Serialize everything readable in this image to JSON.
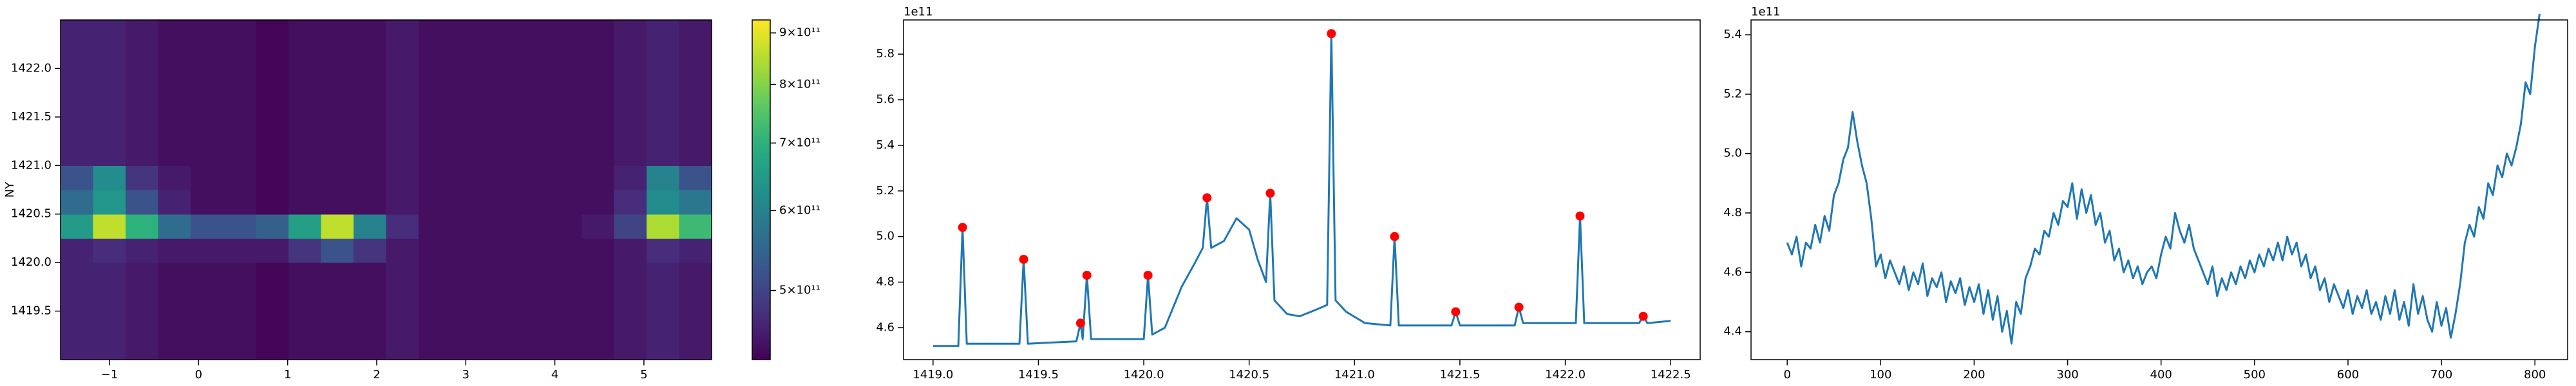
{
  "chart_data": [
    {
      "type": "heatmap",
      "y_label": "NY",
      "xlim": [
        -1.55,
        5.76
      ],
      "ylim": [
        1419.0,
        1422.5
      ],
      "xticks": [
        {
          "value": -1,
          "label": "−1"
        },
        0,
        1,
        2,
        3,
        4,
        5
      ],
      "yticks": [
        1419.5,
        {
          "value": 1420,
          "label": "1420.0"
        },
        1420.5,
        {
          "value": 1421,
          "label": "1421.0"
        },
        1421.5,
        {
          "value": 1422,
          "label": "1422.0"
        }
      ],
      "colormap": "viridis",
      "color_scale": "log",
      "clim": [
        427000000000.0,
        927000000000.0
      ],
      "cticks": [
        {
          "value": 500000000000.0,
          "label": "5×10¹¹"
        },
        {
          "value": 600000000000.0,
          "label": "6×10¹¹"
        },
        {
          "value": 700000000000.0,
          "label": "7×10¹¹"
        },
        {
          "value": 800000000000.0,
          "label": "8×10¹¹"
        },
        {
          "value": 900000000000.0,
          "label": "9×10¹¹"
        }
      ],
      "z": [
        [
          460000000000.0,
          460000000000.0,
          450000000000.0,
          440000000000.0,
          440000000000.0,
          440000000000.0,
          430000000000.0,
          440000000000.0,
          440000000000.0,
          440000000000.0,
          450000000000.0,
          440000000000.0,
          440000000000.0,
          440000000000.0,
          440000000000.0,
          440000000000.0,
          440000000000.0,
          450000000000.0,
          460000000000.0,
          450000000000.0
        ],
        [
          460000000000.0,
          460000000000.0,
          450000000000.0,
          440000000000.0,
          440000000000.0,
          440000000000.0,
          430000000000.0,
          440000000000.0,
          440000000000.0,
          440000000000.0,
          450000000000.0,
          440000000000.0,
          440000000000.0,
          440000000000.0,
          440000000000.0,
          440000000000.0,
          440000000000.0,
          450000000000.0,
          460000000000.0,
          450000000000.0
        ],
        [
          460000000000.0,
          460000000000.0,
          450000000000.0,
          440000000000.0,
          440000000000.0,
          440000000000.0,
          430000000000.0,
          440000000000.0,
          440000000000.0,
          440000000000.0,
          450000000000.0,
          440000000000.0,
          440000000000.0,
          440000000000.0,
          440000000000.0,
          440000000000.0,
          440000000000.0,
          450000000000.0,
          460000000000.0,
          450000000000.0
        ],
        [
          460000000000.0,
          460000000000.0,
          450000000000.0,
          440000000000.0,
          440000000000.0,
          440000000000.0,
          430000000000.0,
          440000000000.0,
          440000000000.0,
          440000000000.0,
          450000000000.0,
          440000000000.0,
          440000000000.0,
          440000000000.0,
          440000000000.0,
          440000000000.0,
          440000000000.0,
          450000000000.0,
          460000000000.0,
          450000000000.0
        ],
        [
          460000000000.0,
          470000000000.0,
          460000000000.0,
          450000000000.0,
          450000000000.0,
          450000000000.0,
          450000000000.0,
          480000000000.0,
          520000000000.0,
          480000000000.0,
          450000000000.0,
          440000000000.0,
          440000000000.0,
          440000000000.0,
          440000000000.0,
          440000000000.0,
          440000000000.0,
          450000000000.0,
          470000000000.0,
          460000000000.0
        ],
        [
          650000000000.0,
          860000000000.0,
          700000000000.0,
          560000000000.0,
          520000000000.0,
          520000000000.0,
          540000000000.0,
          660000000000.0,
          860000000000.0,
          600000000000.0,
          470000000000.0,
          440000000000.0,
          440000000000.0,
          440000000000.0,
          440000000000.0,
          440000000000.0,
          450000000000.0,
          500000000000.0,
          840000000000.0,
          720000000000.0
        ],
        [
          560000000000.0,
          640000000000.0,
          520000000000.0,
          460000000000.0,
          440000000000.0,
          440000000000.0,
          430000000000.0,
          440000000000.0,
          440000000000.0,
          440000000000.0,
          450000000000.0,
          440000000000.0,
          440000000000.0,
          440000000000.0,
          440000000000.0,
          440000000000.0,
          440000000000.0,
          470000000000.0,
          620000000000.0,
          580000000000.0
        ],
        [
          520000000000.0,
          620000000000.0,
          480000000000.0,
          450000000000.0,
          440000000000.0,
          440000000000.0,
          430000000000.0,
          440000000000.0,
          440000000000.0,
          440000000000.0,
          450000000000.0,
          440000000000.0,
          440000000000.0,
          440000000000.0,
          440000000000.0,
          440000000000.0,
          440000000000.0,
          460000000000.0,
          600000000000.0,
          520000000000.0
        ],
        [
          460000000000.0,
          460000000000.0,
          450000000000.0,
          440000000000.0,
          440000000000.0,
          440000000000.0,
          430000000000.0,
          440000000000.0,
          440000000000.0,
          440000000000.0,
          450000000000.0,
          440000000000.0,
          440000000000.0,
          440000000000.0,
          440000000000.0,
          440000000000.0,
          440000000000.0,
          450000000000.0,
          460000000000.0,
          450000000000.0
        ],
        [
          460000000000.0,
          460000000000.0,
          450000000000.0,
          440000000000.0,
          440000000000.0,
          440000000000.0,
          430000000000.0,
          440000000000.0,
          440000000000.0,
          440000000000.0,
          450000000000.0,
          440000000000.0,
          440000000000.0,
          440000000000.0,
          440000000000.0,
          440000000000.0,
          440000000000.0,
          450000000000.0,
          460000000000.0,
          450000000000.0
        ],
        [
          460000000000.0,
          460000000000.0,
          450000000000.0,
          440000000000.0,
          440000000000.0,
          440000000000.0,
          430000000000.0,
          440000000000.0,
          440000000000.0,
          440000000000.0,
          450000000000.0,
          440000000000.0,
          440000000000.0,
          440000000000.0,
          440000000000.0,
          440000000000.0,
          440000000000.0,
          450000000000.0,
          460000000000.0,
          450000000000.0
        ],
        [
          460000000000.0,
          460000000000.0,
          450000000000.0,
          440000000000.0,
          440000000000.0,
          440000000000.0,
          430000000000.0,
          440000000000.0,
          440000000000.0,
          440000000000.0,
          450000000000.0,
          440000000000.0,
          440000000000.0,
          440000000000.0,
          440000000000.0,
          440000000000.0,
          440000000000.0,
          450000000000.0,
          460000000000.0,
          450000000000.0
        ],
        [
          460000000000.0,
          460000000000.0,
          450000000000.0,
          440000000000.0,
          440000000000.0,
          440000000000.0,
          430000000000.0,
          440000000000.0,
          440000000000.0,
          440000000000.0,
          450000000000.0,
          440000000000.0,
          440000000000.0,
          440000000000.0,
          440000000000.0,
          440000000000.0,
          440000000000.0,
          450000000000.0,
          460000000000.0,
          450000000000.0
        ],
        [
          460000000000.0,
          460000000000.0,
          450000000000.0,
          440000000000.0,
          440000000000.0,
          440000000000.0,
          430000000000.0,
          440000000000.0,
          440000000000.0,
          440000000000.0,
          450000000000.0,
          440000000000.0,
          440000000000.0,
          440000000000.0,
          440000000000.0,
          440000000000.0,
          440000000000.0,
          450000000000.0,
          460000000000.0,
          450000000000.0
        ]
      ]
    },
    {
      "type": "line",
      "y_offset_label": "1e11",
      "xlim": [
        1418.86,
        1422.64
      ],
      "ylim": [
        4.46,
        5.95
      ],
      "xticks": [
        {
          "value": 1419,
          "label": "1419.0"
        },
        1419.5,
        {
          "value": 1420,
          "label": "1420.0"
        },
        1420.5,
        {
          "value": 1421,
          "label": "1421.0"
        },
        1421.5,
        {
          "value": 1422,
          "label": "1422.0"
        },
        1422.5
      ],
      "yticks": [
        4.6,
        4.8,
        {
          "value": 5,
          "label": "5.0"
        },
        5.2,
        5.4,
        5.6,
        5.8
      ],
      "series": [
        {
          "color": "#1f77b4",
          "x": [
            1419.0,
            1419.12,
            1419.14,
            1419.16,
            1419.41,
            1419.43,
            1419.45,
            1419.68,
            1419.7,
            1419.71,
            1419.73,
            1419.75,
            1420.0,
            1420.02,
            1420.04,
            1420.1,
            1420.18,
            1420.24,
            1420.28,
            1420.3,
            1420.32,
            1420.38,
            1420.44,
            1420.5,
            1420.54,
            1420.58,
            1420.6,
            1420.62,
            1420.68,
            1420.74,
            1420.82,
            1420.87,
            1420.89,
            1420.91,
            1420.96,
            1421.05,
            1421.17,
            1421.19,
            1421.21,
            1421.46,
            1421.48,
            1421.5,
            1421.76,
            1421.78,
            1421.8,
            1422.05,
            1422.07,
            1422.09,
            1422.35,
            1422.37,
            1422.39,
            1422.5
          ],
          "y": [
            4.52,
            4.52,
            5.04,
            4.53,
            4.53,
            4.9,
            4.53,
            4.54,
            4.62,
            4.55,
            4.83,
            4.55,
            4.55,
            4.83,
            4.57,
            4.6,
            4.78,
            4.88,
            4.95,
            5.17,
            4.95,
            4.98,
            5.08,
            5.03,
            4.9,
            4.8,
            5.19,
            4.72,
            4.66,
            4.65,
            4.68,
            4.7,
            5.89,
            4.72,
            4.67,
            4.62,
            4.61,
            5.0,
            4.61,
            4.61,
            4.67,
            4.61,
            4.61,
            4.69,
            4.62,
            4.62,
            5.09,
            4.62,
            4.62,
            4.65,
            4.62,
            4.63
          ]
        }
      ],
      "markers": {
        "color": "#ff0000",
        "x": [
          1419.14,
          1419.43,
          1419.7,
          1419.73,
          1420.02,
          1420.3,
          1420.6,
          1420.89,
          1421.19,
          1421.48,
          1421.78,
          1422.07,
          1422.37
        ],
        "y": [
          5.04,
          4.9,
          4.62,
          4.83,
          4.83,
          5.17,
          5.19,
          5.89,
          5.0,
          4.67,
          4.69,
          5.09,
          4.65
        ]
      }
    },
    {
      "type": "line",
      "y_offset_label": "1e11",
      "xlim": [
        -38.7,
        835
      ],
      "ylim": [
        4.306,
        5.45
      ],
      "xticks": [
        0,
        100,
        200,
        300,
        400,
        500,
        600,
        700,
        800
      ],
      "yticks": [
        4.4,
        4.6,
        4.8,
        {
          "value": 5,
          "label": "5.0"
        },
        5.2,
        5.4
      ],
      "series": [
        {
          "color": "#1f77b4",
          "x": [
            0,
            5,
            10,
            15,
            20,
            25,
            30,
            35,
            40,
            45,
            50,
            55,
            60,
            65,
            70,
            75,
            80,
            85,
            90,
            95,
            100,
            105,
            110,
            115,
            120,
            125,
            130,
            135,
            140,
            145,
            150,
            155,
            160,
            165,
            170,
            175,
            180,
            185,
            190,
            195,
            200,
            205,
            210,
            215,
            220,
            225,
            230,
            235,
            240,
            245,
            250,
            255,
            260,
            265,
            270,
            275,
            280,
            285,
            290,
            295,
            300,
            305,
            310,
            315,
            320,
            325,
            330,
            335,
            340,
            345,
            350,
            355,
            360,
            365,
            370,
            375,
            380,
            385,
            390,
            395,
            400,
            405,
            410,
            415,
            420,
            425,
            430,
            435,
            440,
            445,
            450,
            455,
            460,
            465,
            470,
            475,
            480,
            485,
            490,
            495,
            500,
            505,
            510,
            515,
            520,
            525,
            530,
            535,
            540,
            545,
            550,
            555,
            560,
            565,
            570,
            575,
            580,
            585,
            590,
            595,
            600,
            605,
            610,
            615,
            620,
            625,
            630,
            635,
            640,
            645,
            650,
            655,
            660,
            665,
            670,
            675,
            680,
            685,
            690,
            695,
            700,
            705,
            710,
            715,
            720,
            725,
            730,
            735,
            740,
            745,
            750,
            755,
            760,
            765,
            770,
            775,
            780,
            785,
            790,
            795,
            800,
            805
          ],
          "y": [
            4.7,
            4.66,
            4.72,
            4.62,
            4.7,
            4.68,
            4.76,
            4.7,
            4.79,
            4.74,
            4.86,
            4.9,
            4.98,
            5.02,
            5.14,
            5.04,
            4.96,
            4.9,
            4.78,
            4.62,
            4.66,
            4.58,
            4.64,
            4.6,
            4.56,
            4.62,
            4.54,
            4.6,
            4.56,
            4.63,
            4.52,
            4.58,
            4.55,
            4.6,
            4.5,
            4.57,
            4.53,
            4.58,
            4.49,
            4.55,
            4.5,
            4.56,
            4.46,
            4.54,
            4.44,
            4.52,
            4.4,
            4.47,
            4.36,
            4.5,
            4.46,
            4.58,
            4.62,
            4.68,
            4.66,
            4.74,
            4.72,
            4.8,
            4.76,
            4.84,
            4.82,
            4.9,
            4.78,
            4.88,
            4.8,
            4.86,
            4.76,
            4.8,
            4.7,
            4.74,
            4.64,
            4.68,
            4.6,
            4.64,
            4.58,
            4.62,
            4.56,
            4.6,
            4.62,
            4.58,
            4.66,
            4.72,
            4.68,
            4.8,
            4.74,
            4.7,
            4.76,
            4.68,
            4.64,
            4.6,
            4.56,
            4.62,
            4.52,
            4.58,
            4.54,
            4.6,
            4.56,
            4.62,
            4.58,
            4.64,
            4.6,
            4.66,
            4.62,
            4.68,
            4.64,
            4.7,
            4.64,
            4.72,
            4.66,
            4.7,
            4.62,
            4.66,
            4.58,
            4.62,
            4.54,
            4.58,
            4.5,
            4.56,
            4.52,
            4.48,
            4.54,
            4.46,
            4.52,
            4.48,
            4.54,
            4.46,
            4.5,
            4.44,
            4.52,
            4.46,
            4.54,
            4.44,
            4.5,
            4.42,
            4.56,
            4.46,
            4.52,
            4.44,
            4.4,
            4.5,
            4.42,
            4.48,
            4.38,
            4.46,
            4.56,
            4.7,
            4.76,
            4.72,
            4.82,
            4.78,
            4.9,
            4.86,
            4.96,
            4.92,
            5.0,
            4.96,
            5.02,
            5.1,
            5.24,
            5.2,
            5.36,
            5.47
          ]
        }
      ]
    }
  ]
}
